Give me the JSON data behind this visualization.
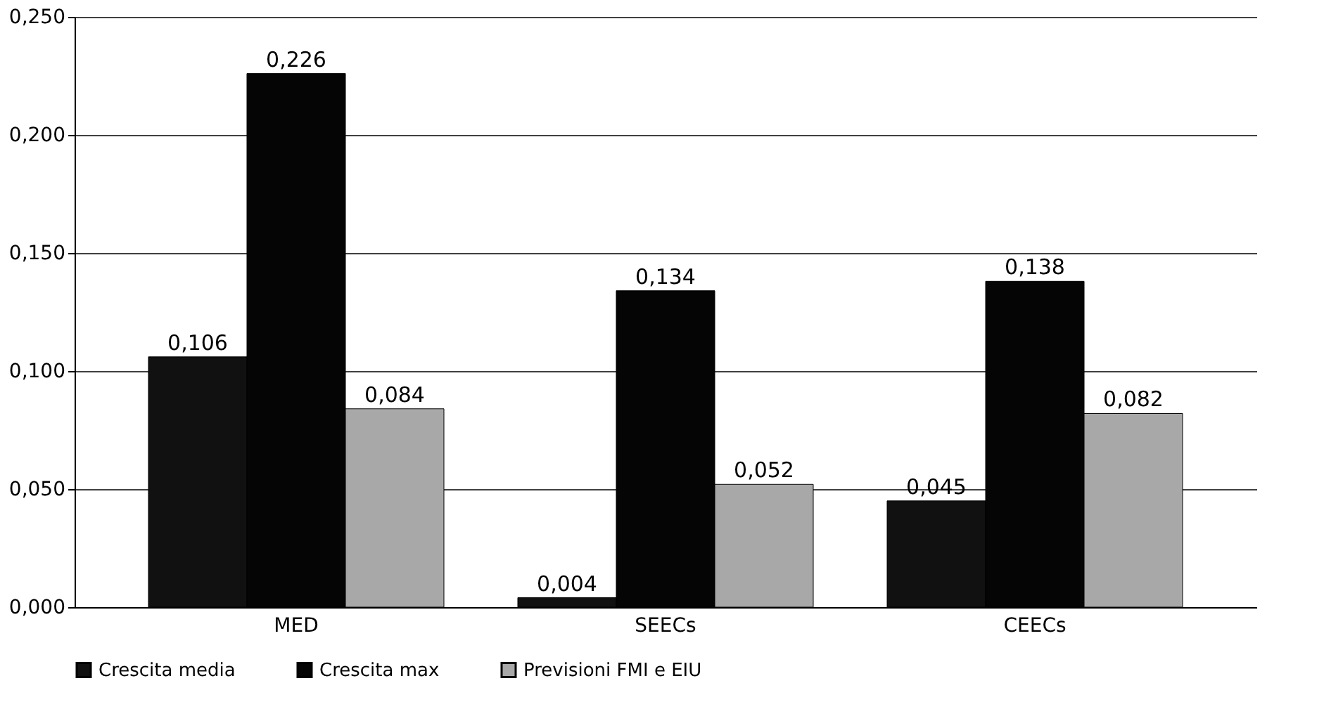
{
  "chart_data": {
    "type": "bar",
    "categories": [
      "MED",
      "SEECs",
      "CEECs"
    ],
    "series": [
      {
        "name": "Crescita media",
        "color": "#111111",
        "values": [
          0.106,
          0.004,
          0.045
        ],
        "value_labels": [
          "0,106",
          "0,004",
          "0,045"
        ]
      },
      {
        "name": "Crescita max",
        "color": "#050505",
        "values": [
          0.226,
          0.134,
          0.138
        ],
        "value_labels": [
          "0,226",
          "0,134",
          "0,138"
        ]
      },
      {
        "name": "Previsioni FMI e EIU",
        "color": "#a8a8a8",
        "values": [
          0.084,
          0.052,
          0.082
        ],
        "value_labels": [
          "0,084",
          "0,052",
          "0,082"
        ]
      }
    ],
    "ylim": [
      0,
      0.25
    ],
    "yticks": [
      {
        "value": 0,
        "label": "0,000"
      },
      {
        "value": 0.05,
        "label": "0,050"
      },
      {
        "value": 0.1,
        "label": "0,100"
      },
      {
        "value": 0.15,
        "label": "0,150"
      },
      {
        "value": 0.2,
        "label": "0,200"
      },
      {
        "value": 0.25,
        "label": "0,250"
      }
    ],
    "grid": "y",
    "legend": "bottom"
  }
}
